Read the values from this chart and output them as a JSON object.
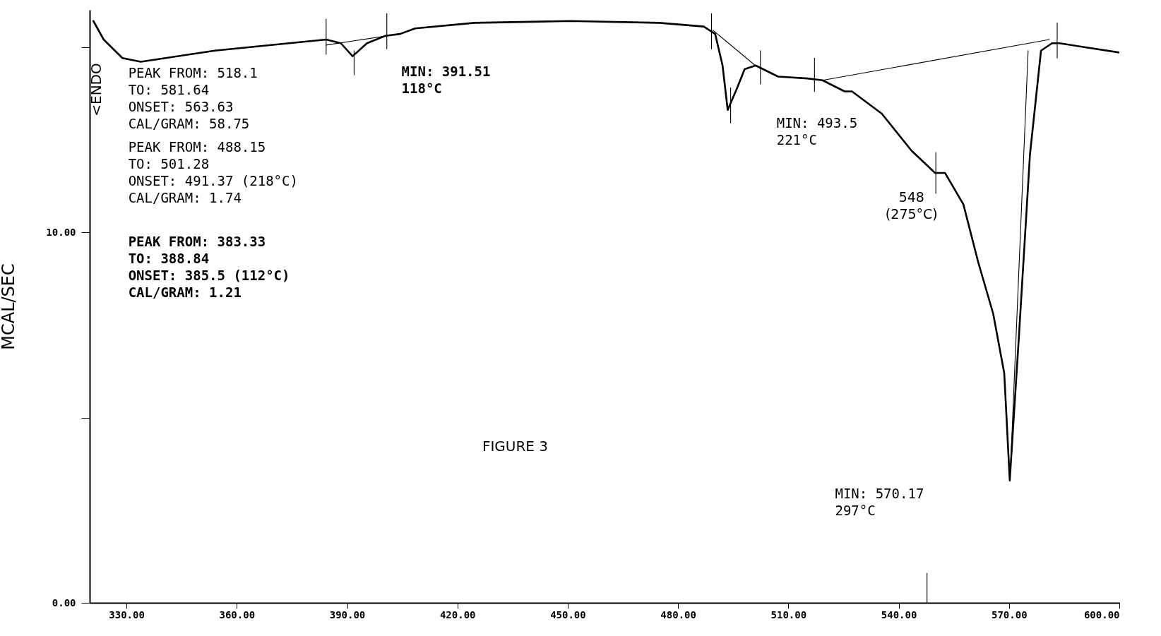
{
  "chart_data": {
    "type": "line",
    "ylabel": "MCAL/SEC",
    "xlim": [
      320,
      600
    ],
    "ylim": [
      0,
      16
    ],
    "xticks": [
      {
        "value": 330,
        "label": "330.00"
      },
      {
        "value": 360,
        "label": "360.00"
      },
      {
        "value": 390,
        "label": "390.00"
      },
      {
        "value": 420,
        "label": "420.00"
      },
      {
        "value": 450,
        "label": "450.00"
      },
      {
        "value": 480,
        "label": "480.00"
      },
      {
        "value": 510,
        "label": "510.00"
      },
      {
        "value": 540,
        "label": "540.00"
      },
      {
        "value": 570,
        "label": "570.00"
      },
      {
        "value": 600,
        "label": "600.00"
      }
    ],
    "yticks": [
      {
        "value": 0,
        "label": "0.00"
      },
      {
        "value": 5,
        "label": null
      },
      {
        "value": 10,
        "label": "10.00"
      },
      {
        "value": 15,
        "label": null
      }
    ],
    "grid": false,
    "series": [
      {
        "color": "#000000",
        "x": [
          321,
          323.8,
          328.9,
          333.9,
          354,
          374.2,
          384.3,
          388.3,
          391.5,
          395.4,
          400.4,
          404.4,
          408.5,
          424.6,
          450.8,
          474.9,
          487,
          490.1,
          492.1,
          493.5,
          496.1,
          498.1,
          501.1,
          507.2,
          515.2,
          519.3,
          525.3,
          527.3,
          535.4,
          543.5,
          549.9,
          552.6,
          557.6,
          561.6,
          565.7,
          568.7,
          570.2,
          572.7,
          575.7,
          578.7,
          581.7,
          583.7,
          600
        ],
        "values": [
          15.7,
          15.2,
          14.7,
          14.6,
          14.9,
          15.1,
          15.2,
          15.1,
          14.75,
          15.1,
          15.3,
          15.35,
          15.5,
          15.65,
          15.7,
          15.65,
          15.55,
          15.35,
          14.5,
          13.3,
          13.9,
          14.4,
          14.5,
          14.2,
          14.15,
          14.1,
          13.8,
          13.8,
          13.2,
          12.2,
          11.6,
          11.6,
          10.75,
          9.2,
          7.8,
          6.2,
          3.3,
          7.2,
          12.1,
          14.9,
          15.1,
          15.1,
          14.85
        ]
      },
      {
        "color": "#000000",
        "x": [
          384.3,
          400.8
        ],
        "values": [
          15.05,
          15.3
        ]
      },
      {
        "color": "#000000",
        "x": [
          489.5,
          501
        ],
        "values": [
          15.45,
          14.5
        ]
      },
      {
        "color": "#000000",
        "x": [
          519.3,
          581
        ],
        "values": [
          14.1,
          15.2
        ]
      },
      {
        "color": "#000000",
        "x": [
          575.2,
          570.4
        ],
        "values": [
          14.9,
          3.6
        ]
      },
      {
        "color": "#000000",
        "x": [
          384.3,
          384.3
        ],
        "values": [
          15.75,
          14.8
        ]
      },
      {
        "color": "#000000",
        "x": [
          391.9,
          391.9
        ],
        "values": [
          14.9,
          14.25
        ]
      },
      {
        "color": "#000000",
        "x": [
          400.8,
          400.8
        ],
        "values": [
          15.9,
          14.95
        ]
      },
      {
        "color": "#000000",
        "x": [
          489.1,
          489.1
        ],
        "values": [
          15.9,
          14.95
        ]
      },
      {
        "color": "#000000",
        "x": [
          494.3,
          494.3
        ],
        "values": [
          13.9,
          12.95
        ]
      },
      {
        "color": "#000000",
        "x": [
          502.4,
          502.4
        ],
        "values": [
          14.9,
          14
        ]
      },
      {
        "color": "#000000",
        "x": [
          517.1,
          517.1
        ],
        "values": [
          14.7,
          13.8
        ]
      },
      {
        "color": "#000000",
        "x": [
          550.1,
          550.1
        ],
        "values": [
          12.15,
          11.05
        ]
      },
      {
        "color": "#000000",
        "x": [
          583.1,
          583.1
        ],
        "values": [
          15.65,
          14.7
        ]
      },
      {
        "color": "#000000",
        "x": [
          547.7,
          547.7
        ],
        "values": [
          0.8,
          0
        ]
      }
    ],
    "annotations": [
      "<ENDO",
      "PEAK FROM: 518.1\n       TO: 581.64\nONSET: 563.63\nCAL/GRAM: 58.75",
      "PEAK FROM: 488.15\n       TO: 501.28\nONSET: 491.37 (218°C)\nCAL/GRAM: 1.74",
      "PEAK FROM: 383.33\n       TO: 388.84\nONSET: 385.5 (112°C)\nCAL/GRAM: 1.21",
      "MIN: 391.51\n     118°C",
      "MIN: 493.5\n     221°C",
      "548\n(275°C)",
      "MIN: 570.17\n     297°C",
      "FIGURE 3"
    ]
  }
}
